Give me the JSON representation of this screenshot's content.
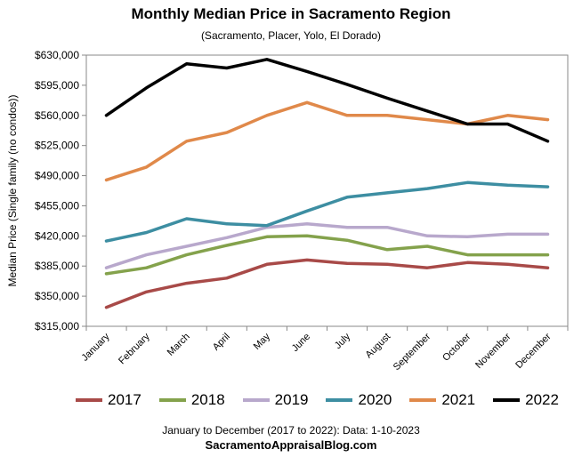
{
  "chart_data": {
    "type": "line",
    "title": "Monthly Median Price in Sacramento Region",
    "subtitle": "(Sacramento, Placer, Yolo, El Dorado)",
    "xlabel": "",
    "ylabel": "Median Price (Single family (no condos))",
    "ylim": [
      315000,
      630000
    ],
    "y_ticks": [
      "$315,000",
      "$350,000",
      "$385,000",
      "$420,000",
      "$455,000",
      "$490,000",
      "$525,000",
      "$560,000",
      "$595,000",
      "$630,000"
    ],
    "y_tick_values": [
      315000,
      350000,
      385000,
      420000,
      455000,
      490000,
      525000,
      560000,
      595000,
      630000
    ],
    "categories": [
      "January",
      "February",
      "March",
      "April",
      "May",
      "June",
      "July",
      "August",
      "September",
      "October",
      "November",
      "December"
    ],
    "grid": false,
    "legend_position": "bottom",
    "series": [
      {
        "name": "2017",
        "color": "#a84a48",
        "values": [
          337000,
          355000,
          365000,
          371000,
          387000,
          392000,
          388000,
          387000,
          383000,
          389000,
          387000,
          383000
        ]
      },
      {
        "name": "2018",
        "color": "#84a24c",
        "values": [
          376000,
          383000,
          398000,
          409000,
          419000,
          420000,
          415000,
          404000,
          408000,
          398000,
          398000,
          398000
        ]
      },
      {
        "name": "2019",
        "color": "#b8a8cc",
        "values": [
          383000,
          398000,
          408000,
          418000,
          430000,
          434000,
          430000,
          430000,
          420000,
          419000,
          422000,
          422000
        ]
      },
      {
        "name": "2020",
        "color": "#3d8ea2",
        "values": [
          414000,
          424000,
          440000,
          434000,
          432000,
          449000,
          465000,
          470000,
          475000,
          482000,
          479000,
          477000
        ]
      },
      {
        "name": "2021",
        "color": "#e0894a",
        "values": [
          485000,
          500000,
          530000,
          540000,
          560000,
          575000,
          560000,
          560000,
          555000,
          550000,
          560000,
          555000
        ]
      },
      {
        "name": "2022",
        "color": "#000000",
        "values": [
          560000,
          592000,
          620000,
          615000,
          625000,
          611000,
          596000,
          580000,
          565000,
          550000,
          550000,
          530000
        ]
      }
    ]
  },
  "footer": {
    "line1": "January to December (2017 to 2022): Data: 1-10-2023",
    "line2": "SacramentoAppraisalBlog.com"
  }
}
